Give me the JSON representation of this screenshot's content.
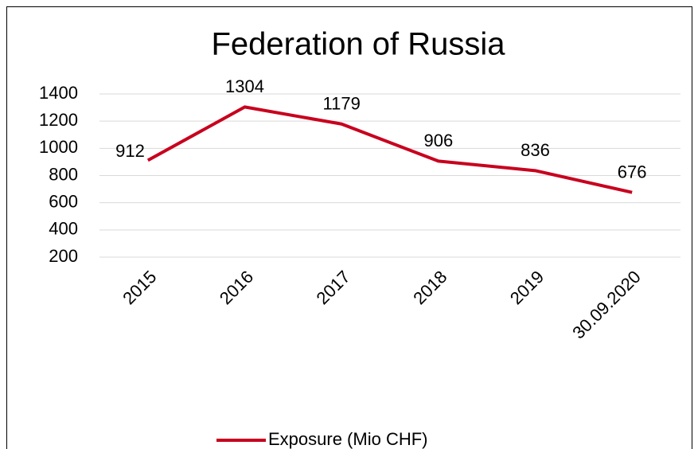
{
  "chart_data": {
    "type": "line",
    "title": "Federation of Russia",
    "categories": [
      "2015",
      "2016",
      "2017",
      "2018",
      "2019",
      "30.09.2020"
    ],
    "series": [
      {
        "name": "Exposure (Mio CHF)",
        "color": "#c8001e",
        "values": [
          912,
          1304,
          1179,
          906,
          836,
          676
        ]
      }
    ],
    "ylim": [
      200,
      1400
    ],
    "yticks": [
      200,
      400,
      600,
      800,
      1000,
      1200,
      1400
    ],
    "grid": true,
    "legend": "bottom"
  }
}
